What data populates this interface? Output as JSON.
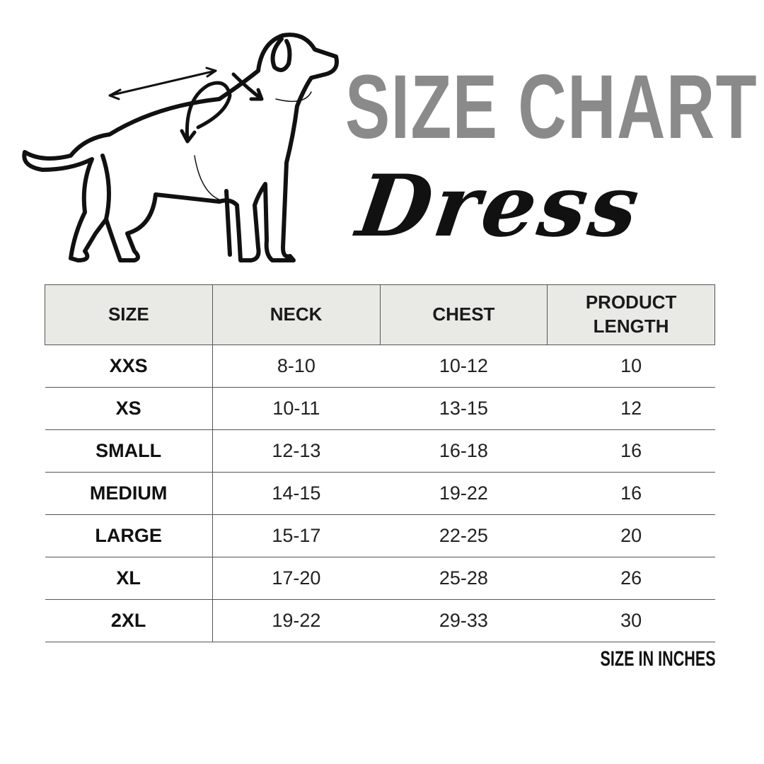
{
  "title": "SIZE CHART",
  "subtitle": "Dress",
  "table": {
    "headers": [
      "SIZE",
      "NECK",
      "CHEST",
      "PRODUCT LENGTH"
    ],
    "rows": [
      [
        "XXS",
        "8-10",
        "10-12",
        "10"
      ],
      [
        "XS",
        "10-11",
        "13-15",
        "12"
      ],
      [
        "SMALL",
        "12-13",
        "16-18",
        "16"
      ],
      [
        "MEDIUM",
        "14-15",
        "19-22",
        "16"
      ],
      [
        "LARGE",
        "15-17",
        "22-25",
        "20"
      ],
      [
        "XL",
        "17-20",
        "25-28",
        "26"
      ],
      [
        "2XL",
        "19-22",
        "29-33",
        "30"
      ]
    ]
  },
  "note": "SIZE IN INCHES",
  "colors": {
    "title": "#8a8a8a",
    "header_bg": "#e9e9e5",
    "text": "#111111"
  },
  "icons": {
    "illustration": "dog-measurement-outline"
  }
}
